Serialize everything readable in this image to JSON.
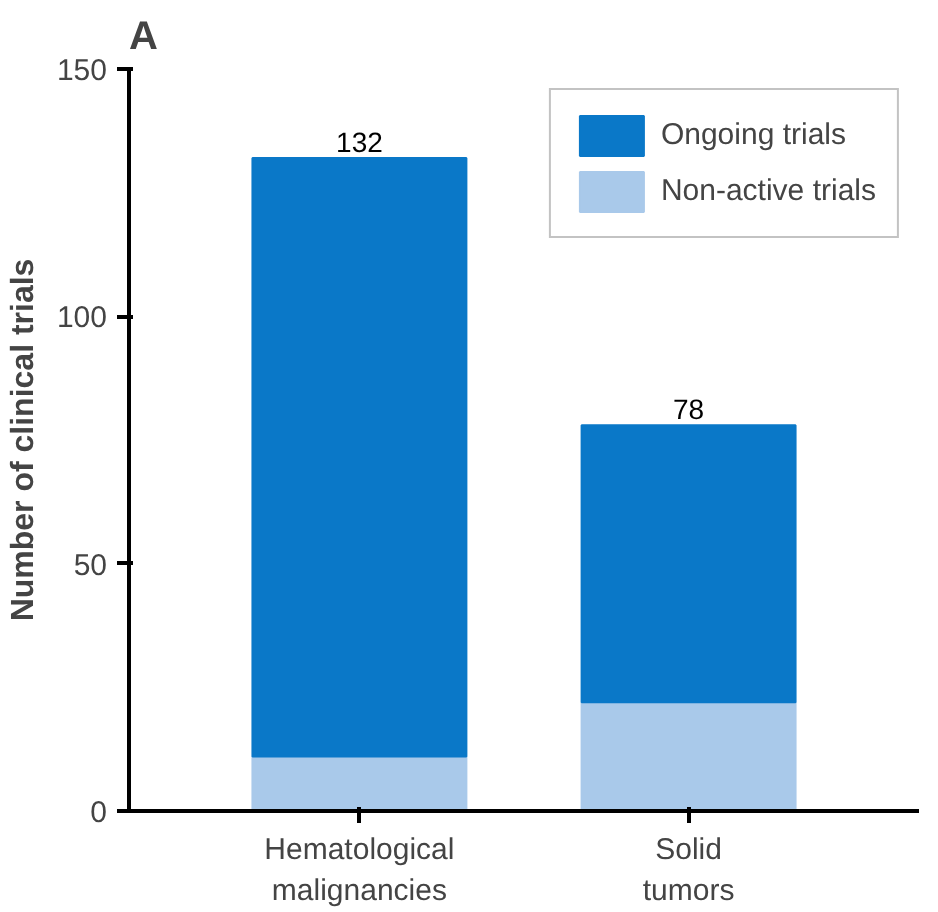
{
  "chart_data": {
    "type": "bar",
    "title": "A",
    "ylabel": "Number of clinical trials",
    "categories": [
      "Hematological\nmalignancies",
      "Solid\ntumors"
    ],
    "stacked": true,
    "series": [
      {
        "name": "Non-active trials",
        "color": "#a9c9ea",
        "values": [
          11,
          22
        ]
      },
      {
        "name": "Ongoing trials",
        "color": "#0a78c8",
        "values": [
          121,
          56
        ]
      }
    ],
    "totals": [
      "132",
      "78"
    ],
    "ylim": [
      0,
      150
    ],
    "yticks": [
      0,
      50,
      100,
      150
    ],
    "grid": false,
    "legend": "top right"
  }
}
